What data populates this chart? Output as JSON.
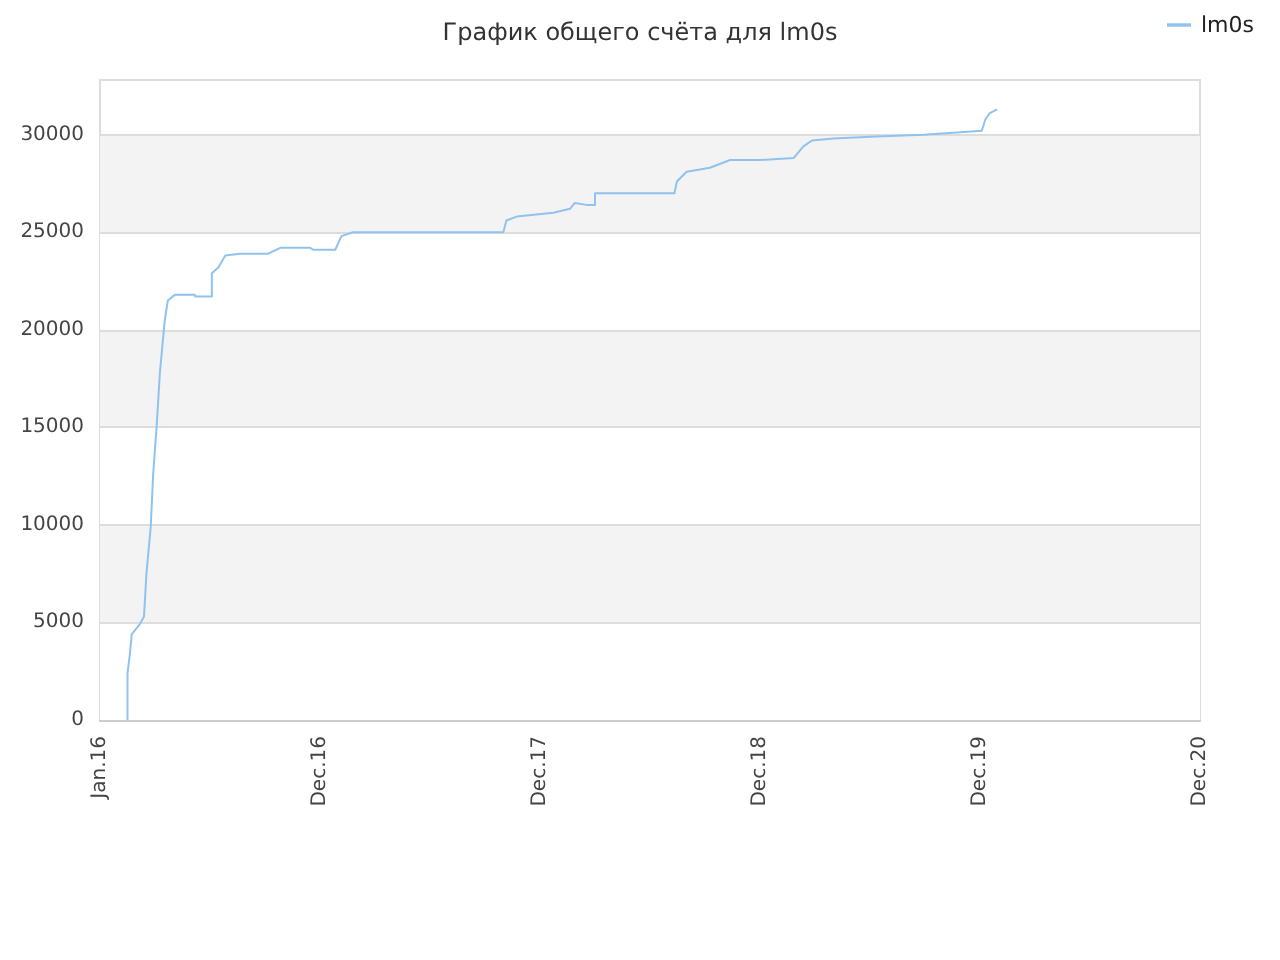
{
  "chart_data": {
    "type": "line",
    "title": "График общего счёта для lm0s",
    "x": [
      "2016-02-15",
      "2016-02-15",
      "2016-02-19",
      "2016-02-22",
      "2016-03-06",
      "2016-03-13",
      "2016-03-17",
      "2016-03-24",
      "2016-03-28",
      "2016-04-03",
      "2016-04-08",
      "2016-04-16",
      "2016-04-21",
      "2016-05-03",
      "2016-06-04",
      "2016-06-05",
      "2016-07-02",
      "2016-07-02",
      "2016-07-13",
      "2016-07-24",
      "2016-08-17",
      "2016-10-02",
      "2016-10-22",
      "2016-12-10",
      "2016-12-15",
      "2017-01-20",
      "2017-01-30",
      "2017-02-18",
      "2017-10-22",
      "2017-10-27",
      "2017-11-13",
      "2018-01-12",
      "2018-02-08",
      "2018-02-16",
      "2018-03-07",
      "2018-03-21",
      "2018-03-21",
      "2018-07-29",
      "2018-08-02",
      "2018-08-18",
      "2018-09-25",
      "2018-10-28",
      "2018-12-16",
      "2019-02-09",
      "2019-02-25",
      "2019-03-11",
      "2019-04-15",
      "2019-06-25",
      "2019-09-09",
      "2019-10-28",
      "2019-12-14",
      "2019-12-20",
      "2019-12-27",
      "2020-01-08"
    ],
    "series": [
      {
        "name": "lm0s",
        "color": "#90c2f0",
        "values": [
          0,
          2400,
          3400,
          4400,
          4900,
          5300,
          7500,
          9900,
          12600,
          15200,
          17800,
          20500,
          21500,
          21800,
          21800,
          21700,
          21700,
          22900,
          23200,
          23800,
          23900,
          23900,
          24200,
          24200,
          24100,
          24100,
          24800,
          25000,
          25000,
          25600,
          25800,
          26000,
          26200,
          26500,
          26400,
          26400,
          27000,
          27000,
          27600,
          28100,
          28300,
          28700,
          28700,
          28800,
          29400,
          29700,
          29800,
          29900,
          30000,
          30100,
          30200,
          30800,
          31100,
          31300
        ]
      }
    ],
    "xlim": [
      "2016-01-01",
      "2020-12-05"
    ],
    "xticks": [
      {
        "value": "2016-01-01",
        "label": "Jan.16"
      },
      {
        "value": "2016-12-26",
        "label": "Dec.16"
      },
      {
        "value": "2017-12-21",
        "label": "Dec.17"
      },
      {
        "value": "2018-12-16",
        "label": "Dec.18"
      },
      {
        "value": "2019-12-11",
        "label": "Dec.19"
      },
      {
        "value": "2020-12-05",
        "label": "Dec.20"
      }
    ],
    "ylim": [
      0,
      32800
    ],
    "yticks": [
      0,
      5000,
      10000,
      15000,
      20000,
      25000,
      30000
    ],
    "grid": "y",
    "legend": "top right",
    "marker": "none",
    "line_style": "solid"
  }
}
